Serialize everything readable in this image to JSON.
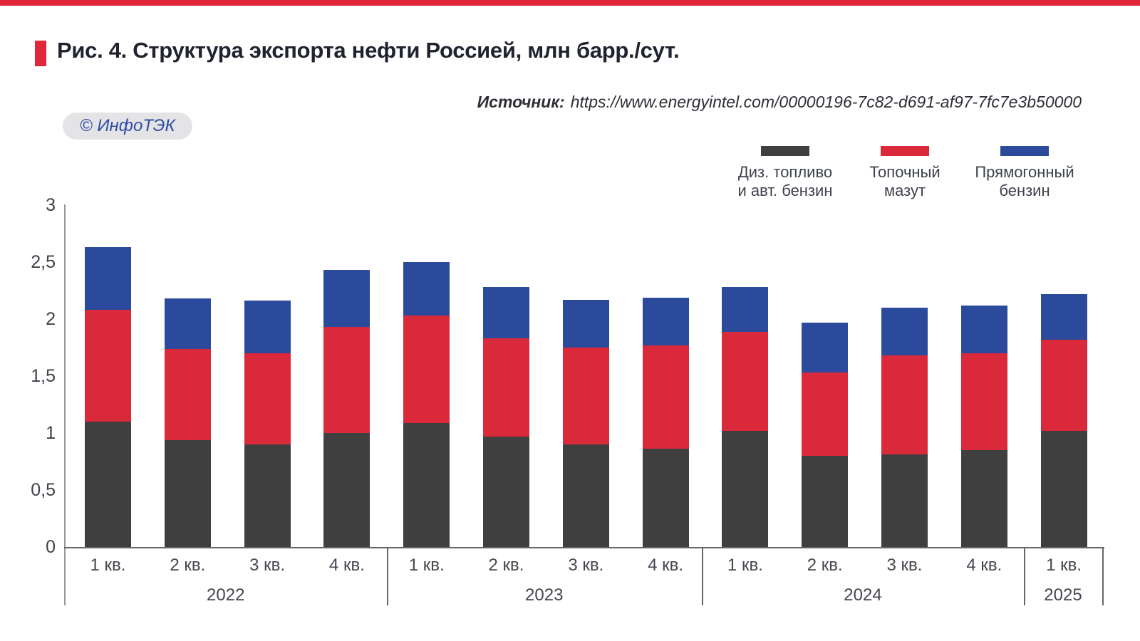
{
  "page": {
    "title": "Рис. 4. Структура экспорта нефти Россией, млн барр./сут.",
    "source_label": "Источник:",
    "source_url": "https://www.energyintel.com/00000196-7c82-d691-af97-7fc7e3b50000",
    "badge": "© ИнфоТЭК"
  },
  "colors": {
    "accent_red": "#e0263a",
    "bar_dark": "#3f3f3f",
    "bar_red": "#d9293b",
    "bar_blue": "#2c4a9c",
    "axis_gray": "#97989e",
    "line_dark": "#63666d",
    "text_gray": "#44474f"
  },
  "legend": [
    {
      "label_line1": "Диз. топливо",
      "label_line2": "и авт. бензин",
      "color": "#3f3f3f"
    },
    {
      "label_line1": "Топочный",
      "label_line2": "мазут",
      "color": "#d9293b"
    },
    {
      "label_line1": "Прямогонный",
      "label_line2": "бензин",
      "color": "#2c4a9c"
    }
  ],
  "chart_data": {
    "type": "bar",
    "stacked": true,
    "title": "Структура экспорта нефти Россией",
    "ylabel": "млн барр./сут.",
    "ylim": [
      0,
      3
    ],
    "yticks": [
      "0",
      "0,5",
      "1",
      "1,5",
      "2",
      "2,5",
      "3"
    ],
    "grid": false,
    "legend_position": "top-right",
    "groups": [
      {
        "year": "2022",
        "quarters": [
          "1 кв.",
          "2 кв.",
          "3 кв.",
          "4 кв."
        ]
      },
      {
        "year": "2023",
        "quarters": [
          "1 кв.",
          "2 кв.",
          "3 кв.",
          "4 кв."
        ]
      },
      {
        "year": "2024",
        "quarters": [
          "1 кв.",
          "2 кв.",
          "3 кв.",
          "4 кв."
        ]
      },
      {
        "year": "2025",
        "quarters": [
          "1 кв."
        ]
      }
    ],
    "series": [
      {
        "name": "Диз. топливо и авт. бензин",
        "color": "#3f3f3f",
        "values": [
          1.1,
          0.94,
          0.9,
          1.0,
          1.09,
          0.97,
          0.9,
          0.86,
          1.02,
          0.8,
          0.81,
          0.85,
          1.02
        ]
      },
      {
        "name": "Топочный мазут",
        "color": "#d9293b",
        "values": [
          0.98,
          0.8,
          0.8,
          0.93,
          0.94,
          0.86,
          0.85,
          0.91,
          0.87,
          0.73,
          0.87,
          0.85,
          0.8
        ]
      },
      {
        "name": "Прямогонный бензин",
        "color": "#2c4a9c",
        "values": [
          0.55,
          0.44,
          0.46,
          0.5,
          0.47,
          0.45,
          0.42,
          0.42,
          0.39,
          0.44,
          0.42,
          0.42,
          0.4
        ]
      }
    ],
    "totals": [
      2.63,
      2.18,
      2.16,
      2.43,
      2.5,
      2.28,
      2.17,
      2.19,
      2.28,
      1.97,
      2.1,
      2.12,
      2.22
    ]
  }
}
